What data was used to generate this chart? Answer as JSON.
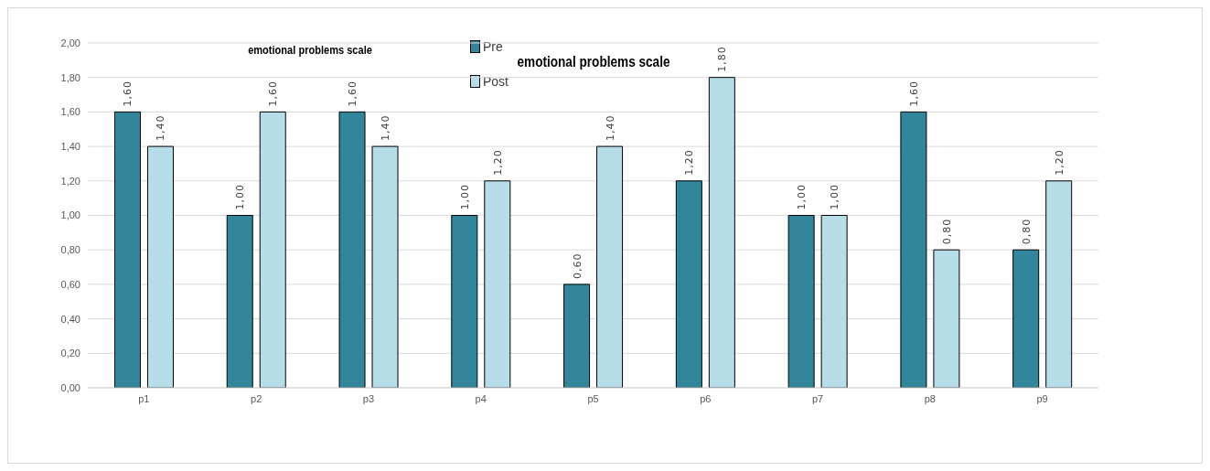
{
  "chart_data": {
    "type": "bar",
    "title": "emotional problems scale",
    "subtitle": "emotional problems scale",
    "categories": [
      "p1",
      "p2",
      "p3",
      "p4",
      "p5",
      "p6",
      "p7",
      "p8",
      "p9"
    ],
    "series": [
      {
        "name": "Pre",
        "color": "#31869b",
        "values": [
          1.6,
          1.0,
          1.6,
          1.0,
          0.6,
          1.2,
          1.0,
          1.6,
          0.8
        ],
        "value_labels": [
          "1,60",
          "1,00",
          "1,60",
          "1,00",
          "0,60",
          "1,20",
          "1,00",
          "1,60",
          "0,80"
        ]
      },
      {
        "name": "Post",
        "color": "#b7dde8",
        "values": [
          1.4,
          1.6,
          1.4,
          1.2,
          1.4,
          1.8,
          1.0,
          0.8,
          1.2
        ],
        "value_labels": [
          "1,40",
          "1,60",
          "1,40",
          "1,20",
          "1,40",
          "1,80",
          "1,00",
          "0,80",
          "1,20"
        ]
      }
    ],
    "ylim": [
      0,
      2
    ],
    "yticks": [
      {
        "value": 0,
        "label": "0,00"
      },
      {
        "value": 0.2,
        "label": "0,20"
      },
      {
        "value": 0.4,
        "label": "0,40"
      },
      {
        "value": 0.6,
        "label": "0,60"
      },
      {
        "value": 0.8,
        "label": "0,80"
      },
      {
        "value": 1,
        "label": "1,00"
      },
      {
        "value": 1.2,
        "label": "1,20"
      },
      {
        "value": 1.4,
        "label": "1,40"
      },
      {
        "value": 1.6,
        "label": "1,60"
      },
      {
        "value": 1.8,
        "label": "1,80"
      },
      {
        "value": 2,
        "label": "2,00"
      }
    ],
    "grid": "y",
    "legend": "top"
  }
}
